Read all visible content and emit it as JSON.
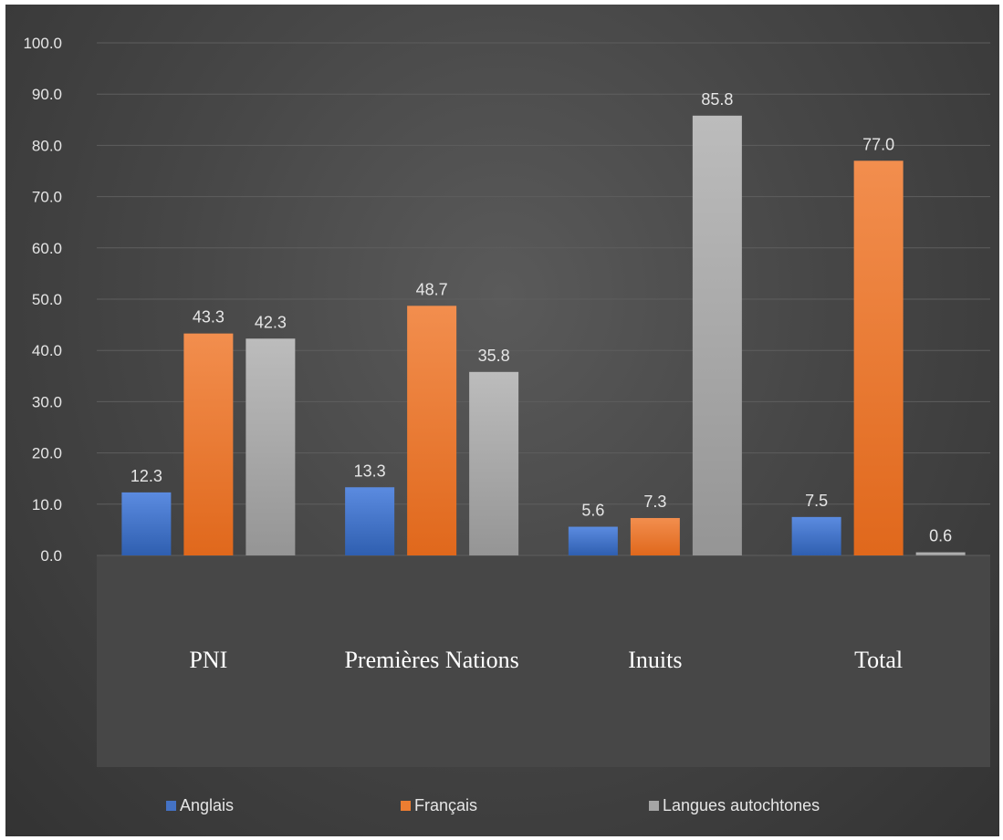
{
  "chart_data": {
    "type": "bar",
    "title": "",
    "xlabel": "",
    "ylabel": "",
    "categories": [
      "PNI",
      "Premières Nations",
      "Inuits",
      "Total"
    ],
    "series": [
      {
        "name": "Anglais",
        "color": "#4472c4",
        "values": [
          12.3,
          13.3,
          5.6,
          7.5
        ],
        "labels": [
          "12.3",
          "13.3",
          "5.6",
          "7.5"
        ]
      },
      {
        "name": "Français",
        "color": "#ed7d31",
        "values": [
          43.3,
          48.7,
          7.3,
          77.0
        ],
        "labels": [
          "43.3",
          "48.7",
          "7.3",
          "77.0"
        ]
      },
      {
        "name": "Langues autochtones",
        "color": "#a5a5a5",
        "values": [
          42.3,
          35.8,
          85.8,
          0.6
        ],
        "labels": [
          "42.3",
          "35.8",
          "85.8",
          "0.6"
        ]
      }
    ],
    "ylim": [
      0,
      100
    ],
    "yticks": [
      "0.0",
      "10.0",
      "20.0",
      "30.0",
      "40.0",
      "50.0",
      "60.0",
      "70.0",
      "80.0",
      "90.0",
      "100.0"
    ],
    "grid": true,
    "legend": "bottom"
  }
}
